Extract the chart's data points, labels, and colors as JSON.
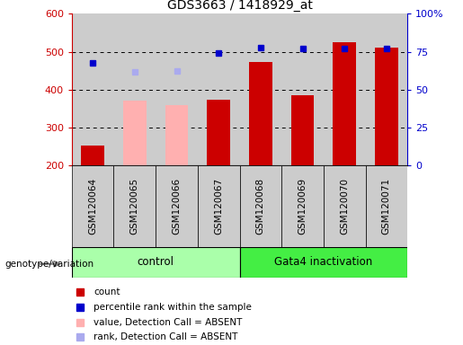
{
  "title": "GDS3663 / 1418929_at",
  "samples": [
    "GSM120064",
    "GSM120065",
    "GSM120066",
    "GSM120067",
    "GSM120068",
    "GSM120069",
    "GSM120070",
    "GSM120071"
  ],
  "groups": {
    "control": [
      0,
      1,
      2,
      3
    ],
    "Gata4 inactivation": [
      4,
      5,
      6,
      7
    ]
  },
  "count_values": [
    252,
    null,
    null,
    373,
    472,
    385,
    525,
    510
  ],
  "count_absent_values": [
    null,
    372,
    360,
    null,
    null,
    null,
    null,
    null
  ],
  "percentile_rank": [
    470,
    null,
    null,
    497,
    510,
    508,
    509,
    508
  ],
  "rank_absent": [
    null,
    447,
    449,
    null,
    null,
    null,
    null,
    null
  ],
  "ylim": [
    200,
    600
  ],
  "y2lim": [
    0,
    100
  ],
  "yticks": [
    200,
    300,
    400,
    500,
    600
  ],
  "y2ticks": [
    0,
    25,
    50,
    75,
    100
  ],
  "y2ticklabels": [
    "0",
    "25",
    "50",
    "75",
    "100%"
  ],
  "bar_width": 0.55,
  "count_color": "#cc0000",
  "count_absent_color": "#ffb0b0",
  "rank_color": "#0000cc",
  "rank_absent_color": "#aaaaee",
  "col_bg_color": "#cccccc",
  "control_color": "#aaffaa",
  "gata4_color": "#44ee44",
  "legend_items": [
    {
      "label": "count",
      "color": "#cc0000"
    },
    {
      "label": "percentile rank within the sample",
      "color": "#0000cc"
    },
    {
      "label": "value, Detection Call = ABSENT",
      "color": "#ffb0b0"
    },
    {
      "label": "rank, Detection Call = ABSENT",
      "color": "#aaaaee"
    }
  ]
}
